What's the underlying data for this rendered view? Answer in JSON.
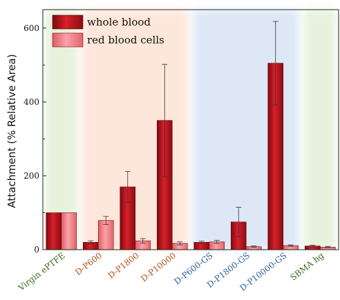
{
  "chart_data": {
    "type": "bar",
    "ylabel": "Attachment (% Relative Area)",
    "xlabel": "",
    "ylim": [
      0,
      650
    ],
    "yticks": [
      0,
      200,
      400,
      600
    ],
    "grid": false,
    "legend_position": "top-left",
    "categories": [
      "Virgin ePTFE",
      "D-P600",
      "D-P1800",
      "D-P10000",
      "D-P600-GS",
      "D-P1800-GS",
      "D-P10000-GS",
      "SBMA hg"
    ],
    "category_colors": [
      "#3a6a1e",
      "#b2541a",
      "#b2541a",
      "#b2541a",
      "#2f5f9a",
      "#2f5f9a",
      "#2f5f9a",
      "#3a6a1e"
    ],
    "background_bands": [
      {
        "from": 0,
        "to": 0,
        "color": "#e6f2dc"
      },
      {
        "from": 1,
        "to": 3,
        "color": "#fde6da"
      },
      {
        "from": 4,
        "to": 6,
        "color": "#dde7f5"
      },
      {
        "from": 7,
        "to": 7,
        "color": "#e6f2dc"
      }
    ],
    "series": [
      {
        "name": "whole blood",
        "color": "#c0121c",
        "values": [
          100,
          20,
          170,
          350,
          20,
          75,
          505,
          10
        ],
        "errors": [
          0,
          4,
          42,
          152,
          3,
          40,
          113,
          2
        ]
      },
      {
        "name": "red blood cells",
        "color": "#f07f86",
        "values": [
          100,
          79,
          24,
          17,
          21,
          8,
          11,
          7
        ],
        "errors": [
          0,
          11,
          6,
          4,
          4,
          2,
          2,
          2
        ]
      }
    ]
  }
}
